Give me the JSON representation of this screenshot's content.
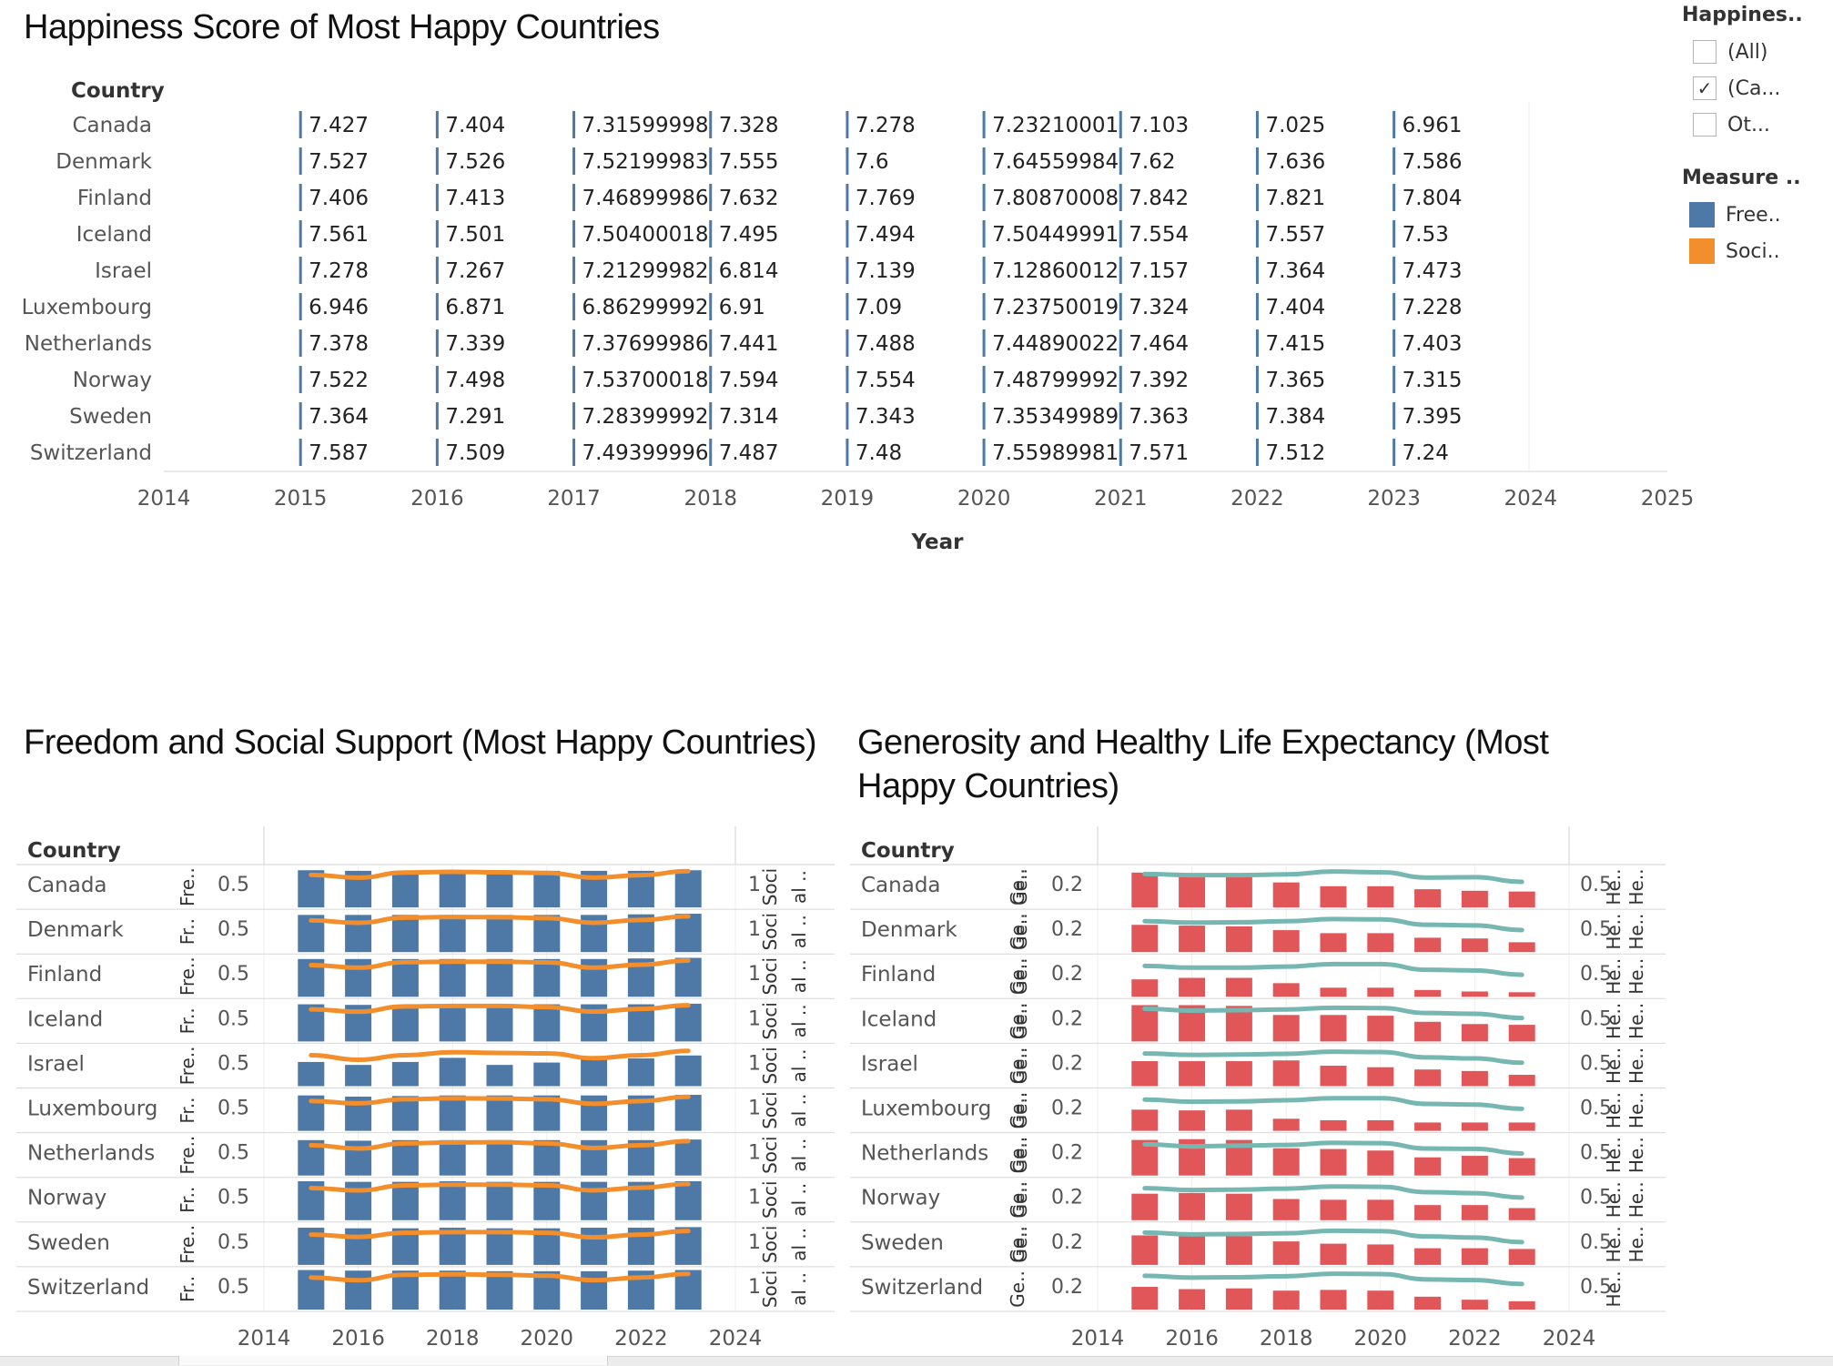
{
  "titles": {
    "top": "Happiness Score of Most Happy Countries",
    "bottom_left": "Freedom and Social Support (Most Happy Countries)",
    "bottom_right_line1": "Generosity and Healthy Life Expectancy (Most",
    "bottom_right_line2": "Happy Countries)"
  },
  "legend": {
    "filter_title": "Happines..",
    "filter_items": [
      {
        "label": "(All)",
        "checked": false
      },
      {
        "label": "(Ca...",
        "checked": true
      },
      {
        "label": "Ot...",
        "checked": false
      }
    ],
    "measure_title": "Measure ..",
    "measure_items": [
      {
        "label": "Free..",
        "color": "#4e79a7"
      },
      {
        "label": "Soci..",
        "color": "#f28e2b"
      }
    ]
  },
  "chart_data": [
    {
      "type": "table",
      "title": "Happiness Score of Most Happy Countries",
      "row_header": "Country",
      "xlabel": "Year",
      "xlim": [
        2014,
        2025
      ],
      "x_ticks": [
        "2014",
        "2015",
        "2016",
        "2017",
        "2018",
        "2019",
        "2020",
        "2021",
        "2022",
        "2023",
        "2024",
        "2025"
      ],
      "years": [
        2015,
        2016,
        2017,
        2018,
        2019,
        2020,
        2021,
        2022,
        2023
      ],
      "countries": [
        "Canada",
        "Denmark",
        "Finland",
        "Iceland",
        "Israel",
        "Luxembourg",
        "Netherlands",
        "Norway",
        "Sweden",
        "Switzerland"
      ],
      "labels": [
        [
          "7.427",
          "7.404",
          "7.31599998",
          "7.328",
          "7.278",
          "7.23210001",
          "7.103",
          "7.025",
          "6.961"
        ],
        [
          "7.527",
          "7.526",
          "7.52199983",
          "7.555",
          "7.6",
          "7.64559984",
          "7.62",
          "7.636",
          "7.586"
        ],
        [
          "7.406",
          "7.413",
          "7.46899986",
          "7.632",
          "7.769",
          "7.80870008",
          "7.842",
          "7.821",
          "7.804"
        ],
        [
          "7.561",
          "7.501",
          "7.50400018",
          "7.495",
          "7.494",
          "7.50449991",
          "7.554",
          "7.557",
          "7.53"
        ],
        [
          "7.278",
          "7.267",
          "7.21299982",
          "6.814",
          "7.139",
          "7.12860012",
          "7.157",
          "7.364",
          "7.473"
        ],
        [
          "6.946",
          "6.871",
          "6.86299992",
          "6.91",
          "7.09",
          "7.23750019",
          "7.324",
          "7.404",
          "7.228"
        ],
        [
          "7.378",
          "7.339",
          "7.37699986",
          "7.441",
          "7.488",
          "7.44890022",
          "7.464",
          "7.415",
          "7.403"
        ],
        [
          "7.522",
          "7.498",
          "7.53700018",
          "7.594",
          "7.554",
          "7.48799992",
          "7.392",
          "7.365",
          "7.315"
        ],
        [
          "7.364",
          "7.291",
          "7.28399992",
          "7.314",
          "7.343",
          "7.35349989",
          "7.363",
          "7.384",
          "7.395"
        ],
        [
          "7.587",
          "7.509",
          "7.49399996",
          "7.487",
          "7.48",
          "7.55989981",
          "7.571",
          "7.512",
          "7.24"
        ]
      ]
    },
    {
      "type": "bar",
      "title": "Freedom and Social Support (Most Happy Countries)",
      "row_header": "Country",
      "countries": [
        "Canada",
        "Denmark",
        "Finland",
        "Iceland",
        "Israel",
        "Luxembourg",
        "Netherlands",
        "Norway",
        "Sweden",
        "Switzerland"
      ],
      "years": [
        2015,
        2016,
        2017,
        2018,
        2019,
        2020,
        2021,
        2022,
        2023
      ],
      "xlim": [
        2014,
        2024
      ],
      "x_ticks": [
        "2014",
        "2016",
        "2018",
        "2020",
        "2022",
        "2024"
      ],
      "left_axis": {
        "tick": "0.5",
        "ylim": [
          0,
          0.68
        ],
        "labels": [
          "Fre..",
          "Fr..",
          "Fre..",
          "Fr..",
          "Fre..",
          "Fr..",
          "Fre..",
          "Fr..",
          "Fre..",
          "Fr.."
        ]
      },
      "right_axis": {
        "tick": "1",
        "ylim": [
          0,
          1.75
        ],
        "label_a": [
          "Soci",
          "Soci",
          "Soci",
          "Soci",
          "Soci",
          "Soci",
          "Soci",
          "Soci",
          "Soci",
          "Soci"
        ],
        "label_b": [
          "al ..",
          "al ..",
          "al ..",
          "al ..",
          "al ..",
          "al ..",
          "al ..",
          "al ..",
          "al ..",
          "al .."
        ]
      },
      "series": [
        {
          "name": "Freedom",
          "mark": "bar",
          "color": "#4e79a7",
          "values": [
            [
              0.63,
              0.62,
              0.62,
              0.62,
              0.61,
              0.62,
              0.62,
              0.62,
              0.63
            ],
            [
              0.63,
              0.63,
              0.63,
              0.63,
              0.63,
              0.63,
              0.63,
              0.64,
              0.65
            ],
            [
              0.64,
              0.64,
              0.64,
              0.64,
              0.64,
              0.64,
              0.64,
              0.65,
              0.66
            ],
            [
              0.63,
              0.62,
              0.62,
              0.62,
              0.62,
              0.63,
              0.63,
              0.63,
              0.64
            ],
            [
              0.41,
              0.36,
              0.41,
              0.48,
              0.36,
              0.4,
              0.46,
              0.47,
              0.52
            ],
            [
              0.6,
              0.58,
              0.59,
              0.6,
              0.6,
              0.6,
              0.6,
              0.6,
              0.61
            ],
            [
              0.6,
              0.59,
              0.6,
              0.6,
              0.6,
              0.6,
              0.6,
              0.6,
              0.61
            ],
            [
              0.66,
              0.65,
              0.65,
              0.66,
              0.65,
              0.65,
              0.65,
              0.65,
              0.66
            ],
            [
              0.63,
              0.62,
              0.62,
              0.63,
              0.62,
              0.62,
              0.63,
              0.63,
              0.64
            ],
            [
              0.67,
              0.66,
              0.66,
              0.66,
              0.65,
              0.65,
              0.65,
              0.66,
              0.67
            ]
          ]
        },
        {
          "name": "Social support",
          "mark": "line",
          "color": "#f28e2b",
          "values": [
            [
              1.42,
              1.3,
              1.52,
              1.55,
              1.53,
              1.5,
              1.3,
              1.41,
              1.58
            ],
            [
              1.38,
              1.28,
              1.5,
              1.53,
              1.52,
              1.48,
              1.28,
              1.4,
              1.56
            ],
            [
              1.38,
              1.27,
              1.51,
              1.53,
              1.53,
              1.5,
              1.27,
              1.4,
              1.58
            ],
            [
              1.4,
              1.3,
              1.53,
              1.55,
              1.55,
              1.5,
              1.3,
              1.42,
              1.58
            ],
            [
              1.35,
              1.15,
              1.35,
              1.48,
              1.45,
              1.43,
              1.22,
              1.35,
              1.54
            ],
            [
              1.3,
              1.2,
              1.38,
              1.42,
              1.41,
              1.38,
              1.18,
              1.3,
              1.48
            ],
            [
              1.32,
              1.18,
              1.4,
              1.44,
              1.45,
              1.4,
              1.2,
              1.32,
              1.5
            ],
            [
              1.4,
              1.3,
              1.52,
              1.55,
              1.55,
              1.52,
              1.3,
              1.42,
              1.58
            ],
            [
              1.32,
              1.22,
              1.4,
              1.43,
              1.43,
              1.4,
              1.2,
              1.32,
              1.48
            ],
            [
              1.4,
              1.28,
              1.52,
              1.54,
              1.52,
              1.48,
              1.28,
              1.4,
              1.56
            ]
          ]
        }
      ]
    },
    {
      "type": "bar",
      "title": "Generosity and Healthy Life Expectancy (Most Happy Countries)",
      "row_header": "Country",
      "countries": [
        "Canada",
        "Denmark",
        "Finland",
        "Iceland",
        "Israel",
        "Luxembourg",
        "Netherlands",
        "Norway",
        "Sweden",
        "Switzerland"
      ],
      "years": [
        2015,
        2016,
        2017,
        2018,
        2019,
        2020,
        2021,
        2022,
        2023
      ],
      "xlim": [
        2014,
        2024
      ],
      "x_ticks": [
        "2014",
        "2016",
        "2018",
        "2020",
        "2022",
        "2024"
      ],
      "left_axis": {
        "tick": "0.2",
        "ylim": [
          0,
          0.53
        ],
        "label_a": [
          "Ge..",
          "Ge..",
          "Ge..",
          "Ge..",
          "Ge..",
          "Ge..",
          "Ge..",
          "Ge..",
          "Ge..",
          "Ge.."
        ],
        "label_b": [
          "Ge..",
          "Ge..",
          "Ge..",
          "Ge..",
          "Ge..",
          "Ge..",
          "Ge..",
          "Ge..",
          "Ge..",
          ""
        ]
      },
      "right_axis": {
        "tick": "0.5",
        "ylim": [
          0,
          1.13
        ],
        "label_a": [
          "He..",
          "He..",
          "He..",
          "He..",
          "He..",
          "He..",
          "He..",
          "He..",
          "He..",
          "He.."
        ],
        "label_b": [
          "He..",
          "He..",
          "He..",
          "He..",
          "He..",
          "He..",
          "He..",
          "He..",
          "He..",
          ""
        ]
      },
      "series": [
        {
          "name": "Generosity",
          "mark": "bar",
          "color": "#e15759",
          "values": [
            [
              0.46,
              0.44,
              0.42,
              0.33,
              0.28,
              0.28,
              0.24,
              0.22,
              0.21
            ],
            [
              0.36,
              0.35,
              0.34,
              0.29,
              0.25,
              0.25,
              0.19,
              0.18,
              0.13
            ],
            [
              0.23,
              0.25,
              0.25,
              0.18,
              0.12,
              0.12,
              0.09,
              0.07,
              0.06
            ],
            [
              0.48,
              0.48,
              0.47,
              0.35,
              0.35,
              0.34,
              0.26,
              0.23,
              0.22
            ],
            [
              0.33,
              0.33,
              0.33,
              0.34,
              0.27,
              0.25,
              0.22,
              0.2,
              0.15
            ],
            [
              0.28,
              0.27,
              0.28,
              0.16,
              0.14,
              0.14,
              0.11,
              0.11,
              0.11
            ],
            [
              0.47,
              0.48,
              0.47,
              0.36,
              0.35,
              0.33,
              0.24,
              0.26,
              0.23
            ],
            [
              0.35,
              0.36,
              0.35,
              0.28,
              0.27,
              0.27,
              0.2,
              0.2,
              0.16
            ],
            [
              0.39,
              0.38,
              0.38,
              0.31,
              0.28,
              0.27,
              0.22,
              0.22,
              0.21
            ],
            [
              0.3,
              0.27,
              0.28,
              0.25,
              0.26,
              0.25,
              0.17,
              0.13,
              0.11
            ]
          ]
        },
        {
          "name": "Healthy life expectancy",
          "mark": "line",
          "color": "#76b7b2",
          "values": [
            [
              0.94,
              0.91,
              0.91,
              0.93,
              1.01,
              0.99,
              0.84,
              0.85,
              0.72
            ],
            [
              0.87,
              0.83,
              0.84,
              0.87,
              0.93,
              0.92,
              0.77,
              0.75,
              0.62
            ],
            [
              0.87,
              0.82,
              0.82,
              0.85,
              0.92,
              0.92,
              0.76,
              0.74,
              0.62
            ],
            [
              0.92,
              0.87,
              0.88,
              0.9,
              0.95,
              0.94,
              0.8,
              0.78,
              0.66
            ],
            [
              0.92,
              0.88,
              0.89,
              0.91,
              0.97,
              0.96,
              0.81,
              0.78,
              0.66
            ],
            [
              0.88,
              0.82,
              0.83,
              0.86,
              0.92,
              0.92,
              0.76,
              0.74,
              0.62
            ],
            [
              0.88,
              0.82,
              0.84,
              0.86,
              0.92,
              0.91,
              0.76,
              0.75,
              0.62
            ],
            [
              0.9,
              0.85,
              0.86,
              0.89,
              0.95,
              0.94,
              0.79,
              0.76,
              0.64
            ],
            [
              0.91,
              0.86,
              0.87,
              0.89,
              0.96,
              0.95,
              0.8,
              0.77,
              0.64
            ],
            [
              0.95,
              0.9,
              0.91,
              0.94,
              1.01,
              1.0,
              0.85,
              0.83,
              0.72
            ]
          ]
        }
      ]
    }
  ]
}
